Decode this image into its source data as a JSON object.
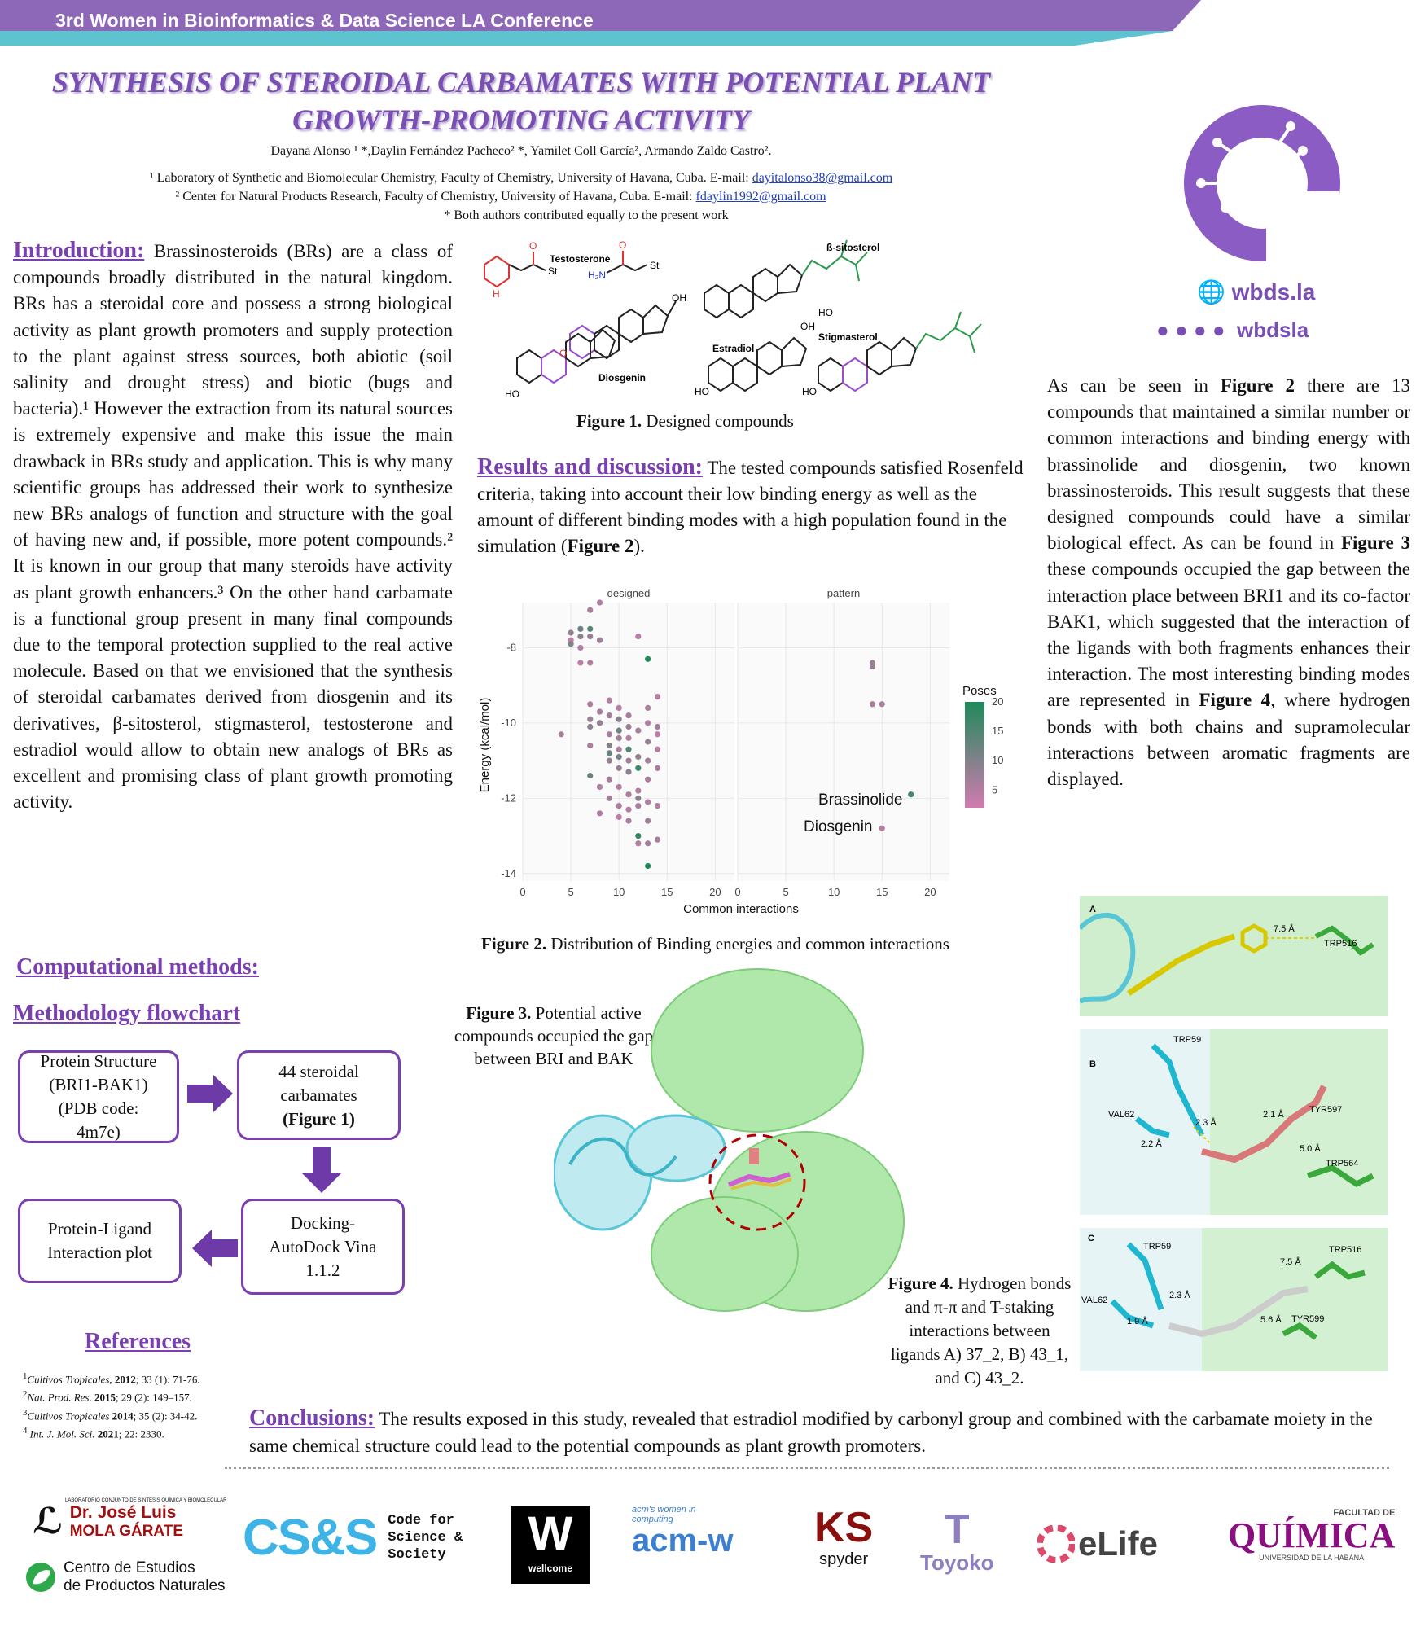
{
  "header": {
    "conference": "3rd Women in Bioinformatics & Data Science LA Conference"
  },
  "title": {
    "line1": "SYNTHESIS OF STEROIDAL CARBAMATES WITH POTENTIAL PLANT",
    "line2": "GROWTH-PROMOTING ACTIVITY"
  },
  "authors": "Dayana Alonso ¹ *,Daylin Fernández Pacheco² *, Yamilet Coll García², Armando Zaldo Castro².",
  "affiliations": {
    "a1_text": "¹ Laboratory of Synthetic and Biomolecular Chemistry, Faculty of Chemistry, University of Havana, Cuba. E-mail: ",
    "a1_email": "dayitalonso38@gmail.com",
    "a2_text": "² Center for Natural Products Research, Faculty of Chemistry, University of Havana, Cuba. E-mail: ",
    "a2_email": "fdaylin1992@gmail.com",
    "note": "* Both authors contributed equally to the present work"
  },
  "logo": {
    "site": "wbds.la",
    "social": "wbdsla"
  },
  "introduction": {
    "heading": "Introduction:",
    "body": "Brassinosteroids (BRs) are a class of compounds broadly distributed in the natural kingdom. BRs has a steroidal core and possess a strong biological activity as plant growth promoters and supply protection to the plant against stress sources, both abiotic (soil salinity and drought stress) and biotic (bugs and bacteria).¹ However the extraction from its natural sources is extremely expensive and make this issue the main drawback in BRs study and application. This is why many scientific groups has addressed their work to synthesize new BRs analogs of function and structure with the goal of having new and, if possible, more potent compounds.² It is known in our group that many steroids have activity as plant growth enhancers.³ On the other hand carbamate is a functional group present in many final compounds due to the temporal protection supplied to the real active molecule. Based on that we envisioned that the synthesis of steroidal carbamates derived from diosgenin and its derivatives, β-sitosterol, stigmasterol, testosterone and estradiol would allow to obtain new analogs of BRs as excellent and promising class of plant growth promoting activity."
  },
  "figure1": {
    "caption_bold": "Figure 1.",
    "caption": " Designed compounds",
    "labels": {
      "testosterone": "Testosterone",
      "sitosterol": "ß-sitosterol",
      "diosgenin": "Diosgenin",
      "estradiol": "Estradiol",
      "stigmasterol": "Stigmasterol",
      "oh": "OH",
      "ho": "HO",
      "o": "O",
      "st": "St",
      "h2n": "H₂N",
      "nh": "H",
      "n": "N"
    }
  },
  "results": {
    "heading": "Results and discussion:",
    "body1": " The tested compounds satisfied Rosenfeld criteria, taking into account their low binding energy as well as the amount of different binding modes with a high population found in the simulation (",
    "bold": "Figure 2",
    "body2": ")."
  },
  "right_text": {
    "p1": "As can be seen in ",
    "b1": "Figure 2",
    "p2": " there are 13 compounds that maintained a similar number or common interactions and binding energy with brassinolide and diosgenin, two known brassinosteroids. This result suggests that these designed compounds could have a similar biological effect. As can be found in ",
    "b2": "Figure 3",
    "p3": " these compounds occupied the gap between the interaction place between BRI1 and its co-factor BAK1, which suggested that the interaction of the ligands with both fragments enhances their interaction. The most interesting binding modes are represented in ",
    "b3": "Figure 4",
    "p4": ", where hydrogen bonds with both chains and supramolecular interactions between aromatic fragments are displayed."
  },
  "chart_data": {
    "type": "scatter",
    "panels": [
      "designed",
      "pattern"
    ],
    "xlabel": "Common interactions",
    "ylabel": "Energy (kcal/mol)",
    "xlim": [
      0,
      22
    ],
    "ylim": [
      -14.2,
      -6.8
    ],
    "xticks": [
      0,
      5,
      10,
      15,
      20
    ],
    "yticks": [
      -8,
      -10,
      -12,
      -14
    ],
    "legend": {
      "title": "Poses",
      "ticks": [
        20,
        15,
        10,
        5
      ],
      "min": 2,
      "max": 20,
      "low_color": "#d17bb0",
      "high_color": "#1f8a5b"
    },
    "annotations": [
      {
        "panel": "pattern",
        "text": "Brassinolide",
        "x": 18,
        "y": -11.9
      },
      {
        "panel": "pattern",
        "text": "Diosgenin",
        "x": 15,
        "y": -12.8
      }
    ],
    "designed": [
      [
        4,
        -10.3,
        6
      ],
      [
        5,
        -7.6,
        8
      ],
      [
        5,
        -7.8,
        4
      ],
      [
        5,
        -7.9,
        10
      ],
      [
        6,
        -7.5,
        12
      ],
      [
        6,
        -7.7,
        9
      ],
      [
        6,
        -8.0,
        5
      ],
      [
        6,
        -8.4,
        4
      ],
      [
        7,
        -7.0,
        6
      ],
      [
        7,
        -7.5,
        14
      ],
      [
        7,
        -7.7,
        8
      ],
      [
        7,
        -8.4,
        5
      ],
      [
        8,
        -6.8,
        5
      ],
      [
        8,
        -7.8,
        7
      ],
      [
        7,
        -9.5,
        5
      ],
      [
        7,
        -9.9,
        7
      ],
      [
        7,
        -10.1,
        9
      ],
      [
        7,
        -10.6,
        6
      ],
      [
        7,
        -11.4,
        12
      ],
      [
        8,
        -9.7,
        6
      ],
      [
        8,
        -10.0,
        8
      ],
      [
        8,
        -12.4,
        5
      ],
      [
        9,
        -9.8,
        7
      ],
      [
        9,
        -10.3,
        6
      ],
      [
        9,
        -10.6,
        10
      ],
      [
        9,
        -10.8,
        13
      ],
      [
        9,
        -11.0,
        8
      ],
      [
        9,
        -11.5,
        6
      ],
      [
        9,
        -12.0,
        7
      ],
      [
        10,
        -9.6,
        5
      ],
      [
        10,
        -9.9,
        9
      ],
      [
        10,
        -10.2,
        12
      ],
      [
        10,
        -10.4,
        7
      ],
      [
        10,
        -10.7,
        6
      ],
      [
        10,
        -10.9,
        11
      ],
      [
        10,
        -11.2,
        8
      ],
      [
        10,
        -11.7,
        5
      ],
      [
        10,
        -12.2,
        6
      ],
      [
        10,
        -12.5,
        4
      ],
      [
        11,
        -9.8,
        6
      ],
      [
        11,
        -10.1,
        8
      ],
      [
        11,
        -10.4,
        5
      ],
      [
        11,
        -10.7,
        15
      ],
      [
        11,
        -11.0,
        7
      ],
      [
        11,
        -11.3,
        9
      ],
      [
        11,
        -11.9,
        6
      ],
      [
        11,
        -12.3,
        5
      ],
      [
        12,
        -7.7,
        4
      ],
      [
        12,
        -10.2,
        6
      ],
      [
        12,
        -10.9,
        8
      ],
      [
        12,
        -11.2,
        17
      ],
      [
        12,
        -11.8,
        5
      ],
      [
        12,
        -12.2,
        6
      ],
      [
        12,
        -13.0,
        18
      ],
      [
        12,
        -13.2,
        5
      ],
      [
        13,
        -8.3,
        20
      ],
      [
        13,
        -9.6,
        6
      ],
      [
        13,
        -10.0,
        5
      ],
      [
        13,
        -10.5,
        8
      ],
      [
        13,
        -11.0,
        7
      ],
      [
        13,
        -11.5,
        6
      ],
      [
        13,
        -12.1,
        5
      ],
      [
        13,
        -12.6,
        7
      ],
      [
        13,
        -13.2,
        6
      ],
      [
        13,
        -13.8,
        20
      ],
      [
        14,
        -9.3,
        5
      ],
      [
        14,
        -10.1,
        7
      ],
      [
        14,
        -10.3,
        4
      ],
      [
        14,
        -11.2,
        6
      ],
      [
        14,
        -12.2,
        5
      ],
      [
        14,
        -13.1,
        6
      ],
      [
        12,
        -12.0,
        9
      ],
      [
        8,
        -11.7,
        5
      ],
      [
        9,
        -9.4,
        5
      ],
      [
        11,
        -12.6,
        6
      ],
      [
        14,
        -10.7,
        5
      ]
    ],
    "pattern": [
      [
        14,
        -8.4,
        8
      ],
      [
        14,
        -8.5,
        8
      ],
      [
        14,
        -9.5,
        6
      ],
      [
        15,
        -9.5,
        6
      ],
      [
        18,
        -11.9,
        16
      ],
      [
        15,
        -12.8,
        5
      ]
    ]
  },
  "figure2": {
    "caption_bold": "Figure 2.",
    "caption": " Distribution of Binding energies and common interactions"
  },
  "methods": {
    "heading": "Computational methods:",
    "flow_heading": "Methodology flowchart"
  },
  "flowchart": {
    "box1": [
      "Protein Structure",
      "(BRI1-BAK1)",
      "(PDB code:",
      "4m7e)"
    ],
    "box2": [
      "44 steroidal",
      "carbamates"
    ],
    "box2_bold": "(Figure 1)",
    "box3": [
      "Docking-",
      "AutoDock Vina",
      "1.1.2"
    ],
    "box4": [
      "Protein-Ligand",
      "Interaction plot"
    ]
  },
  "figure3": {
    "caption_bold": "Figure 3.",
    "caption1": " Potential active",
    "caption2": "compounds occupied the gap",
    "caption3": "between BRI and BAK"
  },
  "figure4": {
    "caption_bold": "Figure 4.",
    "caption1": " Hydrogen bonds",
    "caption2": "and π-π and T-staking",
    "caption3": "interactions between",
    "caption4": "ligands A) 37_2, B) 43_1,",
    "caption5": "and C) 43_2.",
    "panelA": {
      "label": "A",
      "d1": "7.5 Å",
      "r1": "TRP516"
    },
    "panelB": {
      "label": "B",
      "r1": "TRP59",
      "r2": "VAL62",
      "r3": "TYR597",
      "r4": "TRP564",
      "d1": "2.3 Å",
      "d2": "2.2 Å",
      "d3": "2.1 Å",
      "d4": "5.0 Å"
    },
    "panelC": {
      "label": "C",
      "r1": "TRP59",
      "r2": "VAL62",
      "r3": "TRP516",
      "r4": "TYR599",
      "d1": "2.3 Å",
      "d2": "1.9 Å",
      "d3": "7.5 Å",
      "d4": "5.6 Å"
    }
  },
  "references": {
    "heading": "References",
    "r1_j": "Cultivos Tropicales",
    "r1_y": "2012",
    "r1_rest": "; 33 (1): 71-76.",
    "r2_j": "Nat. Prod. Res.",
    "r2_y": "2015",
    "r2_rest": "; 29 (2): 149–157.",
    "r3_j": "Cultivos Tropicales",
    "r3_y": "2014",
    "r3_rest": "; 35 (2): 34-42.",
    "r4_j": "Int. J. Mol. Sci.",
    "r4_y": "2021",
    "r4_rest": "; 22: 2330."
  },
  "conclusions": {
    "heading": "Conclusions:",
    "body": " The results exposed in this study, revealed that estradiol modified by carbonyl group and combined with the carbamate moiety in the same chemical structure could lead to the potential compounds as plant growth promoters."
  },
  "sponsors": {
    "lab_small": "LABORATORIO CONJUNTO DE SÍNTESIS QUÍMICA Y BIOMOLECULAR",
    "lab1": "Dr. José Luis",
    "lab2": "MOLA GÁRATE",
    "cepn1": "Centro de Estudios",
    "cepn2": "de Productos Naturales",
    "css": "CS&S",
    "css1": "Code for",
    "css2": "Science &",
    "css3": "Society",
    "wellcome": "wellcome",
    "w": "W",
    "acm_small1": "acm's women in",
    "acm_small2": "computing",
    "acm": "acm-w",
    "spyder": "spyder",
    "toyoko": "Toyoko",
    "elife": "eLife",
    "quimica_small": "FACULTAD DE",
    "quimica": "QUÍMICA",
    "quimica_sub": "UNIVERSIDAD DE LA HABANA"
  },
  "colors": {
    "purple": "#7a3fb1",
    "banner": "#8e68b8",
    "teal": "#5cc3cf",
    "arrow": "#6e3aa8"
  }
}
